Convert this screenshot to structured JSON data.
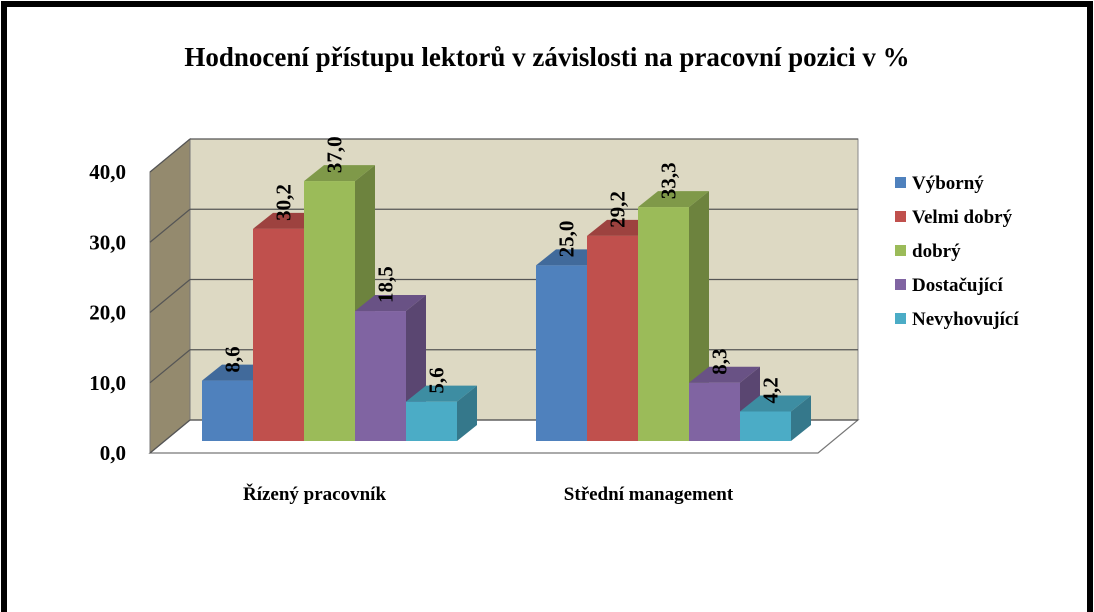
{
  "chart_data": {
    "type": "bar3d",
    "title": "Hodnocení přístupu lektorů v závislosti na pracovní pozici v %",
    "categories": [
      "Řízený pracovník",
      "Střední management"
    ],
    "series": [
      {
        "name": "Výborný",
        "color": "#4f81bd",
        "values": [
          8.6,
          25.0
        ],
        "value_labels": [
          "8,6",
          "25,0"
        ]
      },
      {
        "name": "Velmi dobrý",
        "color": "#c0504d",
        "values": [
          30.2,
          29.2
        ],
        "value_labels": [
          "30,2",
          "29,2"
        ]
      },
      {
        "name": "dobrý",
        "color": "#9bbb59",
        "values": [
          37.0,
          33.3
        ],
        "value_labels": [
          "37,0",
          "33,3"
        ]
      },
      {
        "name": "Dostačující",
        "color": "#8064a2",
        "values": [
          18.5,
          8.3
        ],
        "value_labels": [
          "18,5",
          "8,3"
        ]
      },
      {
        "name": "Nevyhovující",
        "color": "#4bacc6",
        "values": [
          5.6,
          4.2
        ],
        "value_labels": [
          "5,6",
          "4,2"
        ]
      }
    ],
    "ylim": [
      0,
      40
    ],
    "yticks": [
      {
        "value": 0,
        "label": "0,0"
      },
      {
        "value": 10,
        "label": "10,0"
      },
      {
        "value": 20,
        "label": "20,0"
      },
      {
        "value": 30,
        "label": "30,0"
      },
      {
        "value": 40,
        "label": "40,0"
      }
    ],
    "grid": true,
    "legend": "right"
  }
}
